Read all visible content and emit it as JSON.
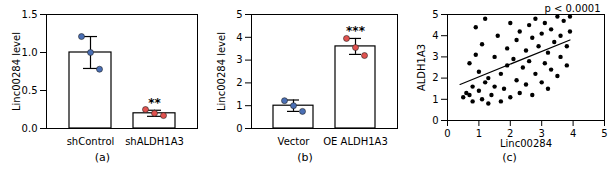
{
  "chart_data": [
    {
      "type": "bar",
      "label": "(a)",
      "y_label": "Linc00284 level",
      "categories": [
        "shControl",
        "shALDH1A3"
      ],
      "values": [
        1.0,
        0.2
      ],
      "errors": [
        0.21,
        0.04
      ],
      "points": [
        [
          1.21,
          1.0,
          0.78
        ],
        [
          0.25,
          0.2,
          0.17
        ]
      ],
      "colors": [
        "#4a6fb5",
        "#e0524f"
      ],
      "annotations": [
        {
          "category": "shALDH1A3",
          "text": "**"
        }
      ],
      "ylim": [
        0,
        1.5
      ],
      "yticks": [
        {
          "value": 0,
          "label": "0.0"
        },
        {
          "value": 0.5,
          "label": "0.5"
        },
        {
          "value": 1,
          "label": "1.0"
        },
        {
          "value": 1.5,
          "label": "1.5"
        }
      ]
    },
    {
      "type": "bar",
      "label": "(b)",
      "y_label": "Linc00284 level",
      "categories": [
        "Vector",
        "OE ALDH1A3"
      ],
      "values": [
        1.0,
        3.6
      ],
      "errors": [
        0.25,
        0.35
      ],
      "points": [
        [
          1.22,
          1.0,
          0.75
        ],
        [
          3.95,
          3.55,
          3.2
        ]
      ],
      "colors": [
        "#4a6fb5",
        "#e0524f"
      ],
      "annotations": [
        {
          "category": "OE ALDH1A3",
          "text": "***"
        }
      ],
      "ylim": [
        0,
        5
      ],
      "yticks": [
        0,
        1,
        2,
        3,
        4,
        5
      ]
    },
    {
      "type": "scatter",
      "label": "(c)",
      "x_label": "Linc00284",
      "y_label": "ALDH1A3",
      "annotation": "p < 0.0001",
      "color": "#000000",
      "x": [
        0.5,
        0.6,
        0.7,
        0.7,
        0.8,
        0.8,
        0.9,
        0.9,
        1.0,
        1.0,
        1.1,
        1.1,
        1.2,
        1.2,
        1.3,
        1.3,
        1.4,
        1.5,
        1.5,
        1.6,
        1.7,
        1.7,
        1.8,
        1.9,
        1.9,
        2.0,
        2.0,
        2.1,
        2.2,
        2.2,
        2.3,
        2.3,
        2.4,
        2.5,
        2.5,
        2.6,
        2.6,
        2.7,
        2.7,
        2.8,
        2.8,
        2.9,
        3.0,
        3.0,
        3.1,
        3.1,
        3.2,
        3.2,
        3.3,
        3.3,
        3.4,
        3.5,
        3.5,
        3.6,
        3.6,
        3.7,
        3.8,
        3.8,
        3.9,
        3.9
      ],
      "y": [
        1.1,
        1.3,
        1.2,
        2.7,
        1.6,
        0.9,
        3.1,
        4.4,
        1.4,
        2.3,
        1.0,
        3.6,
        1.8,
        4.8,
        0.8,
        2.0,
        1.2,
        3.0,
        1.6,
        4.0,
        2.2,
        0.9,
        1.5,
        3.4,
        2.6,
        1.1,
        4.6,
        2.9,
        1.9,
        3.8,
        1.3,
        4.2,
        2.5,
        3.3,
        1.7,
        4.5,
        2.8,
        1.2,
        3.9,
        2.2,
        4.8,
        3.5,
        1.8,
        4.1,
        2.7,
        4.6,
        3.2,
        1.5,
        4.3,
        2.4,
        3.7,
        4.9,
        2.1,
        4.0,
        3.0,
        4.7,
        3.5,
        2.6,
        4.9,
        4.2
      ],
      "fit": {
        "x": [
          0.4,
          3.9
        ],
        "y": [
          1.7,
          3.8
        ]
      },
      "xlim": [
        0,
        5
      ],
      "xticks": [
        0,
        1,
        2,
        3,
        4,
        5
      ],
      "ylim": [
        0,
        5
      ],
      "yticks": [
        0,
        1,
        2,
        3,
        4,
        5
      ]
    }
  ]
}
